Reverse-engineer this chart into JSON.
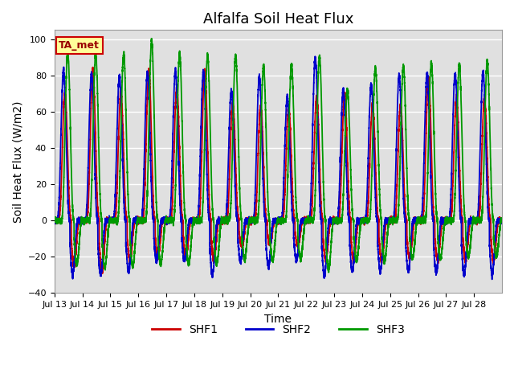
{
  "title": "Alfalfa Soil Heat Flux",
  "ylabel": "Soil Heat Flux (W/m2)",
  "xlabel": "Time",
  "ylim": [
    -40,
    105
  ],
  "shf1_color": "#cc0000",
  "shf2_color": "#0000cc",
  "shf3_color": "#009900",
  "background_color": "#ffffff",
  "plot_bg_color": "#e0e0e0",
  "grid_color": "#ffffff",
  "annotation_text": "TA_met",
  "annotation_bg": "#ffff99",
  "annotation_border": "#cc0000",
  "legend_labels": [
    "SHF1",
    "SHF2",
    "SHF3"
  ],
  "x_tick_labels": [
    "Jul 13",
    "Jul 14",
    "Jul 15",
    "Jul 16",
    "Jul 17",
    "Jul 18",
    "Jul 19",
    "Jul 20",
    "Jul 21",
    "Jul 22",
    "Jul 23",
    "Jul 24",
    "Jul 25",
    "Jul 26",
    "Jul 27",
    "Jul 28"
  ],
  "title_fontsize": 13,
  "label_fontsize": 10,
  "tick_fontsize": 8,
  "legend_fontsize": 10,
  "line_width": 1.3,
  "n_days": 16,
  "pts_per_day": 480,
  "shf1_peak_amps": [
    70,
    83,
    71,
    82,
    73,
    83,
    65,
    63,
    62,
    68,
    70,
    64,
    63,
    78,
    67,
    67
  ],
  "shf2_peak_amps": [
    83,
    81,
    80,
    82,
    82,
    82,
    72,
    79,
    68,
    90,
    72,
    75,
    80,
    81,
    81,
    82
  ],
  "shf3_peak_amps": [
    93,
    92,
    92,
    99,
    92,
    91,
    91,
    85,
    86,
    91,
    72,
    84,
    85,
    87,
    86,
    88
  ],
  "shf1_trough_amps": [
    -25,
    -28,
    -22,
    -20,
    -20,
    -22,
    -14,
    -13,
    -14,
    -22,
    -22,
    -22,
    -21,
    -22,
    -22,
    -22
  ],
  "shf2_trough_amps": [
    -30,
    -30,
    -28,
    -22,
    -22,
    -30,
    -22,
    -25,
    -22,
    -30,
    -28,
    -28,
    -28,
    -29,
    -30,
    -30
  ],
  "shf3_trough_amps": [
    -24,
    -26,
    -25,
    -24,
    -24,
    -24,
    -21,
    -22,
    -21,
    -27,
    -22,
    -22,
    -21,
    -21,
    -20,
    -20
  ],
  "shf1_phase": 0.05,
  "shf2_phase": 0.1,
  "shf3_phase": -0.05
}
